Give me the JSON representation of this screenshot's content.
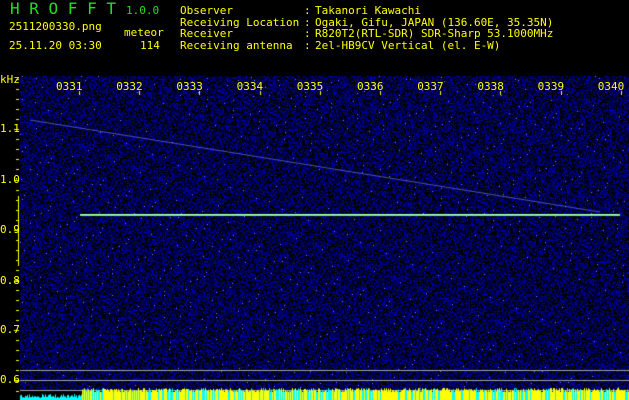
{
  "app": {
    "title": "H R O F F T",
    "version": "1.0.0"
  },
  "file": {
    "name": "2511200330.png",
    "datetime": "25.11.20 03:30"
  },
  "meteor": {
    "label": "meteor",
    "count": "114"
  },
  "info": [
    {
      "label": "Observer",
      "sep": ":",
      "value": "Takanori Kawachi"
    },
    {
      "label": "Receiving Location",
      "sep": ":",
      "value": "Ogaki, Gifu, JAPAN (136.60E, 35.35N)"
    },
    {
      "label": "Receiver",
      "sep": ":",
      "value": "R820T2(RTL-SDR) SDR-Sharp 53.1000MHz"
    },
    {
      "label": "Receiving antenna",
      "sep": ":",
      "value": "2el-HB9CV Vertical (el. E-W)"
    }
  ],
  "spectrogram": {
    "y_unit": "kHz",
    "y_ticks": [
      "1.1",
      "1.0",
      "0.9",
      "0.8",
      "0.7",
      "0.6"
    ],
    "x_ticks": [
      "0331",
      "0332",
      "0333",
      "0334",
      "0335",
      "0336",
      "0337",
      "0338",
      "0339",
      "0340"
    ],
    "colors": {
      "background": "#000000",
      "noise": "#2020c0",
      "carrier": "#40ff80",
      "text": "#ffff00",
      "bars_low": "#00ffff",
      "bars_high": "#ffff00"
    }
  }
}
